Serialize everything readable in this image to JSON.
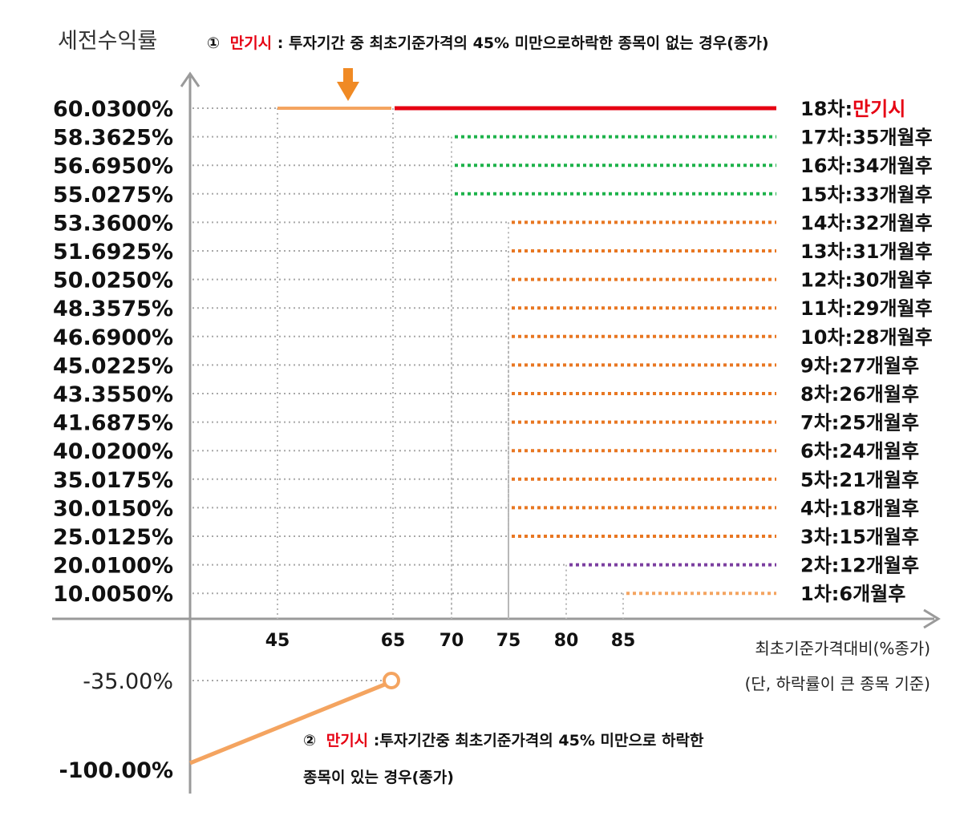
{
  "chart_data": {
    "type": "line",
    "ytitle": "세전수익률",
    "xlabel": "최초기준가격대비(%종가)",
    "xlabel_note": "(단, 하락률이 큰 종목 기준)",
    "xticks": [
      "45",
      "65",
      "70",
      "75",
      "80",
      "85"
    ],
    "annotation_top": {
      "num": "①",
      "highlight": "만기시",
      "text": ": 투자기간 중 최초기준가격의 45% 미만으로하락한 종목이 없는 경우(종가)"
    },
    "annotation_bottom": {
      "num": "②",
      "highlight": "만기시",
      "line1": ":투자기간중 최초기준가격의 45% 미만으로 하락한",
      "line2": "종목이 있는 경우(종가)"
    },
    "levels": [
      {
        "ylabel": "60.0300%",
        "value": 60.03,
        "threshold": 65,
        "prefix": "18차:",
        "suffix": "만기시",
        "suffix_red": true,
        "color": "#e60012",
        "style": "solid"
      },
      {
        "ylabel": "58.3625%",
        "value": 58.3625,
        "threshold": 70,
        "prefix": "17차:",
        "suffix": "35개월후",
        "color": "#1db24a",
        "style": "dotted"
      },
      {
        "ylabel": "56.6950%",
        "value": 56.695,
        "threshold": 70,
        "prefix": "16차:",
        "suffix": "34개월후",
        "color": "#1db24a",
        "style": "dotted"
      },
      {
        "ylabel": "55.0275%",
        "value": 55.0275,
        "threshold": 70,
        "prefix": "15차:",
        "suffix": "33개월후",
        "color": "#1db24a",
        "style": "dotted"
      },
      {
        "ylabel": "53.3600%",
        "value": 53.36,
        "threshold": 75,
        "prefix": "14차:",
        "suffix": "32개월후",
        "color": "#e87722",
        "style": "dotted"
      },
      {
        "ylabel": "51.6925%",
        "value": 51.6925,
        "threshold": 75,
        "prefix": "13차:",
        "suffix": "31개월후",
        "color": "#e87722",
        "style": "dotted"
      },
      {
        "ylabel": "50.0250%",
        "value": 50.025,
        "threshold": 75,
        "prefix": "12차:",
        "suffix": "30개월후",
        "color": "#e87722",
        "style": "dotted"
      },
      {
        "ylabel": "48.3575%",
        "value": 48.3575,
        "threshold": 75,
        "prefix": "11차:",
        "suffix": "29개월후",
        "color": "#e87722",
        "style": "dotted"
      },
      {
        "ylabel": "46.6900%",
        "value": 46.69,
        "threshold": 75,
        "prefix": "10차:",
        "suffix": "28개월후",
        "color": "#e87722",
        "style": "dotted"
      },
      {
        "ylabel": "45.0225%",
        "value": 45.0225,
        "threshold": 75,
        "prefix": "9차:",
        "suffix": "27개월후",
        "color": "#e87722",
        "style": "dotted"
      },
      {
        "ylabel": "43.3550%",
        "value": 43.355,
        "threshold": 75,
        "prefix": "8차:",
        "suffix": "26개월후",
        "color": "#e87722",
        "style": "dotted"
      },
      {
        "ylabel": "41.6875%",
        "value": 41.6875,
        "threshold": 75,
        "prefix": "7차:",
        "suffix": "25개월후",
        "color": "#e87722",
        "style": "dotted"
      },
      {
        "ylabel": "40.0200%",
        "value": 40.02,
        "threshold": 75,
        "prefix": "6차:",
        "suffix": "24개월후",
        "color": "#e87722",
        "style": "dotted"
      },
      {
        "ylabel": "35.0175%",
        "value": 35.0175,
        "threshold": 75,
        "prefix": "5차:",
        "suffix": "21개월후",
        "color": "#e87722",
        "style": "dotted"
      },
      {
        "ylabel": "30.0150%",
        "value": 30.015,
        "threshold": 75,
        "prefix": "4차:",
        "suffix": "18개월후",
        "color": "#e87722",
        "style": "dotted"
      },
      {
        "ylabel": "25.0125%",
        "value": 25.0125,
        "threshold": 75,
        "prefix": "3차:",
        "suffix": "15개월후",
        "color": "#e87722",
        "style": "dotted"
      },
      {
        "ylabel": "20.0100%",
        "value": 20.01,
        "threshold": 80,
        "prefix": "2차:",
        "suffix": "12개월후",
        "color": "#7b3fa0",
        "style": "dotted"
      },
      {
        "ylabel": "10.0050%",
        "value": 10.005,
        "threshold": 85,
        "prefix": "1차:",
        "suffix": "6개월후",
        "color": "#f4a460",
        "style": "dotted"
      }
    ],
    "maturity_band": {
      "from": 45,
      "to": 65,
      "value": 60.03,
      "color": "#f4a460"
    },
    "loss_segment": {
      "points": [
        [
          0,
          -100.0
        ],
        [
          65,
          -35.0
        ]
      ],
      "labels": [
        "-100.00%",
        "-35.00%"
      ],
      "color": "#f4a460"
    }
  }
}
